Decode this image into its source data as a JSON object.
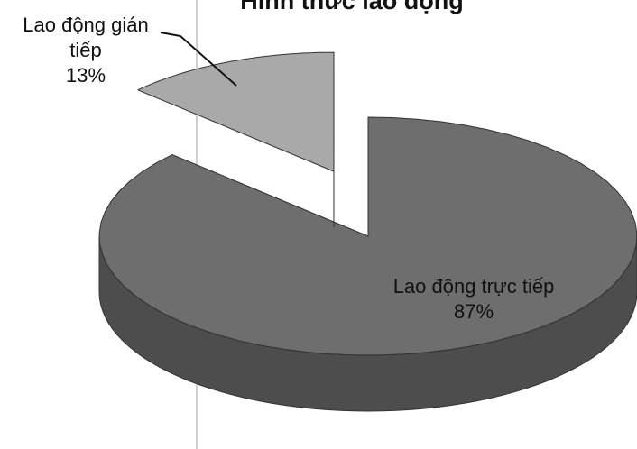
{
  "chart_data": {
    "type": "pie",
    "title": "Hình thức lao động",
    "categories": [
      "Lao động trực tiếp",
      "Lao động gián tiếp"
    ],
    "values": [
      87,
      13
    ],
    "value_labels": [
      "87%",
      "13%"
    ],
    "colors": [
      "#6e6e6e",
      "#a9a9a9"
    ]
  }
}
